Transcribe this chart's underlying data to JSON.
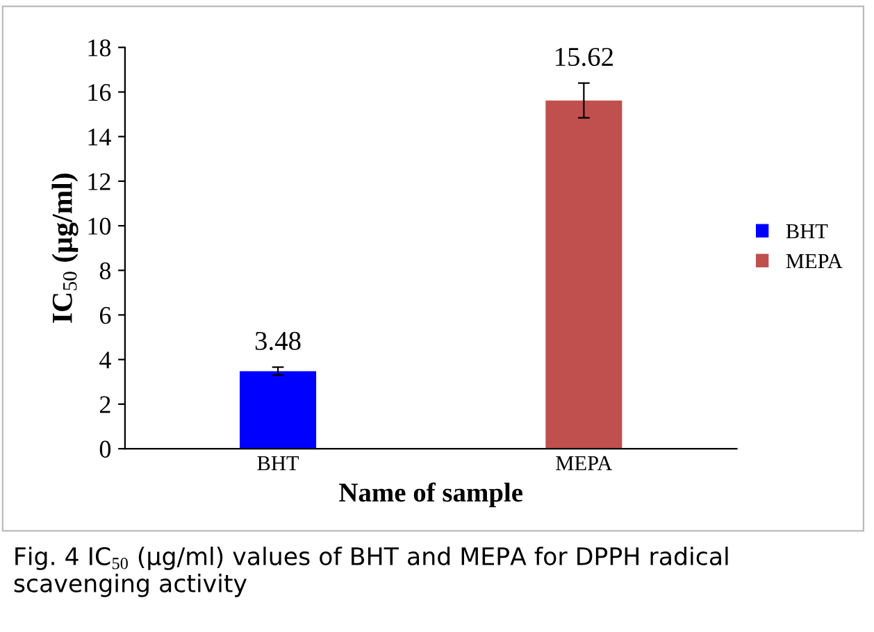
{
  "chart_data": {
    "type": "bar",
    "categories": [
      "BHT",
      "MEPA"
    ],
    "series": [
      {
        "name": "BHT",
        "color": "#0000ff",
        "values": [
          3.48,
          null
        ],
        "errors": [
          0.18,
          null
        ]
      },
      {
        "name": "MEPA",
        "color": "#c0504d",
        "values": [
          null,
          15.62
        ],
        "errors": [
          null,
          0.78
        ]
      }
    ],
    "ylim": [
      0,
      18
    ],
    "yticks": [
      0,
      2,
      4,
      6,
      8,
      10,
      12,
      14,
      16,
      18
    ],
    "xlabel": "Name of sample",
    "ylabel": "IC$_{50}$ (µg/ml)",
    "data_labels": true,
    "legend": "right",
    "grid": false,
    "annotations": [
      "Fig. 4 IC$_{50}$ (µg/ml) values of BHT and MEPA for DPPH radical scavenging activity"
    ]
  }
}
